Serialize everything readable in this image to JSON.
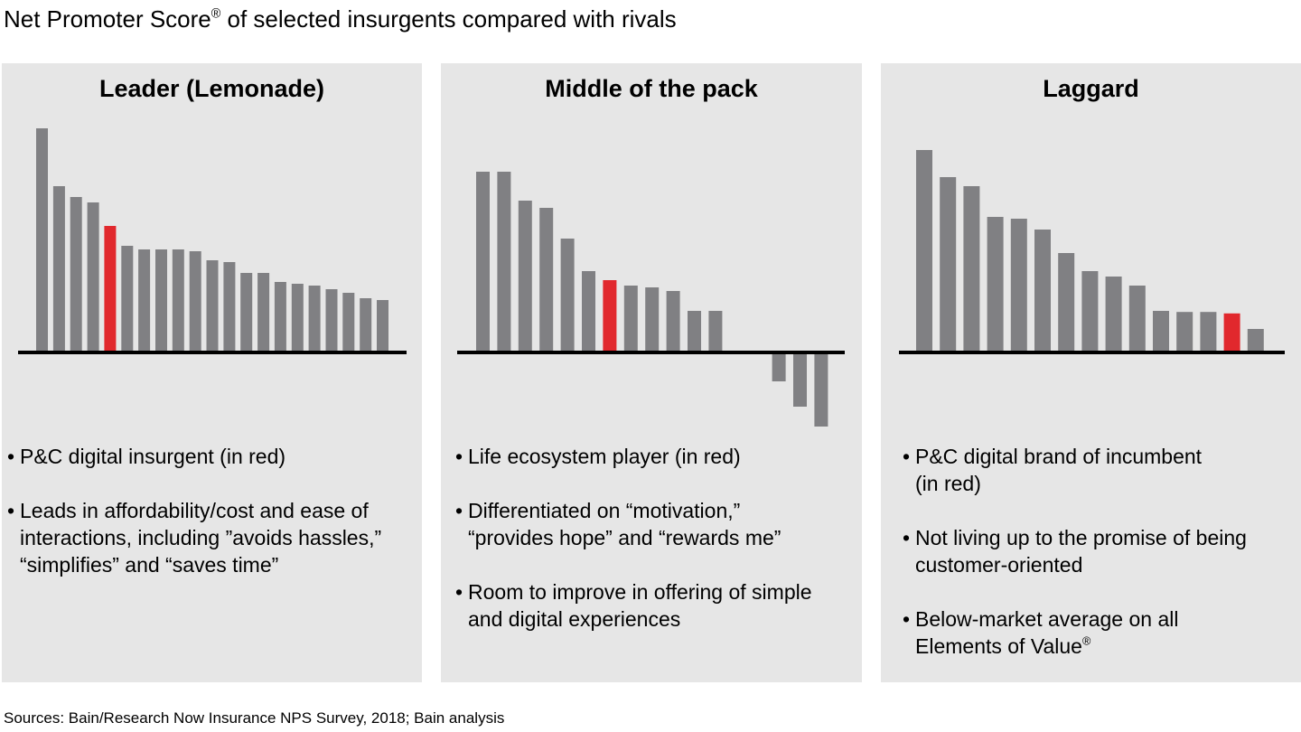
{
  "title": "Net Promoter Score",
  "title_mark": "®",
  "title_rest": " of selected insurgents compared with rivals",
  "sources": "Sources: Bain/Research Now Insurance NPS Survey, 2018; Bain analysis",
  "colors": {
    "bar": "#808083",
    "highlight": "#e1282d",
    "axis": "#000000",
    "panel_bg": "#e6e6e6"
  },
  "panels": [
    {
      "title": "Leader (Lemonade)",
      "bullets": [
        {
          "lines": [
            "P&C digital insurgent (in red)"
          ]
        },
        {
          "lines": [
            "Leads in affordability/cost and ease of",
            "interactions, including ”avoids hassles,”",
            "“simplifies” and “saves time”"
          ]
        }
      ]
    },
    {
      "title": "Middle of the pack",
      "bullets": [
        {
          "lines": [
            "Life ecosystem player (in red)"
          ]
        },
        {
          "lines": [
            "Differentiated on “motivation,”",
            "“provides hope” and “rewards me”"
          ]
        },
        {
          "lines": [
            "Room to improve in offering of simple",
            "and digital experiences"
          ]
        }
      ]
    },
    {
      "title": "Laggard",
      "bullets": [
        {
          "lines": [
            "P&C digital brand of incumbent",
            "(in red)"
          ]
        },
        {
          "lines": [
            "Not living up to the promise of being",
            "customer-oriented"
          ]
        },
        {
          "lines": [
            "Below-market average on all",
            "Elements of Value"
          ],
          "mark": "®"
        }
      ]
    }
  ],
  "chart_data": [
    {
      "type": "bar",
      "title": "Leader (Lemonade)",
      "values": [
        62,
        46,
        43,
        41.5,
        35,
        29.5,
        28.5,
        28.5,
        28.5,
        28,
        25.5,
        25,
        22,
        22,
        19.5,
        19,
        18.5,
        17.5,
        16.5,
        15,
        14.5
      ],
      "highlight_index": 4,
      "ylim": [
        -22,
        70
      ],
      "grid": false,
      "legend": "none"
    },
    {
      "type": "bar",
      "title": "Middle of the pack",
      "values": [
        50,
        50,
        42,
        40,
        31.5,
        22.5,
        20,
        18.5,
        18,
        17,
        11.5,
        11.5,
        0.5,
        0,
        -8,
        -15,
        -20.5
      ],
      "highlight_index": 6,
      "ylim": [
        -22,
        70
      ],
      "grid": false,
      "legend": "none"
    },
    {
      "type": "bar",
      "title": "Laggard",
      "values": [
        56,
        48.5,
        46,
        37.5,
        37,
        34,
        27.5,
        22.5,
        21,
        18.5,
        11.5,
        11.2,
        11.2,
        10.8,
        6.5
      ],
      "highlight_index": 13,
      "ylim": [
        -22,
        70
      ],
      "grid": false,
      "legend": "none"
    }
  ]
}
